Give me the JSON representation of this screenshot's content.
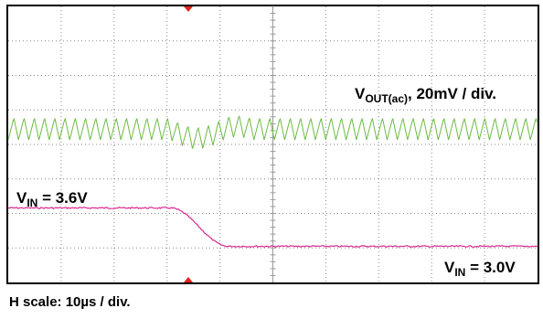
{
  "chart_data": {
    "type": "line",
    "horizontal_scale": "10µs / div.",
    "grid": true,
    "series": [
      {
        "name": "V_OUT(ac)",
        "label_main": "V",
        "label_sub": "OUT(ac)",
        "label_rest": ", 20mV / div.",
        "color": "#6dbb45",
        "description_values": {
          "waveform": "periodic ripple with a transient dip during the input step"
        }
      },
      {
        "name": "V_IN",
        "color": "#d9298e",
        "start": {
          "label_main": "V",
          "label_sub": "IN",
          "label_rest": " = 3.6V",
          "value": 3.6
        },
        "end": {
          "label_main": "V",
          "label_sub": "IN",
          "label_rest": " = 3.0V",
          "value": 3.0
        }
      }
    ]
  },
  "footer": {
    "caption": "H scale: 10µs / div."
  }
}
